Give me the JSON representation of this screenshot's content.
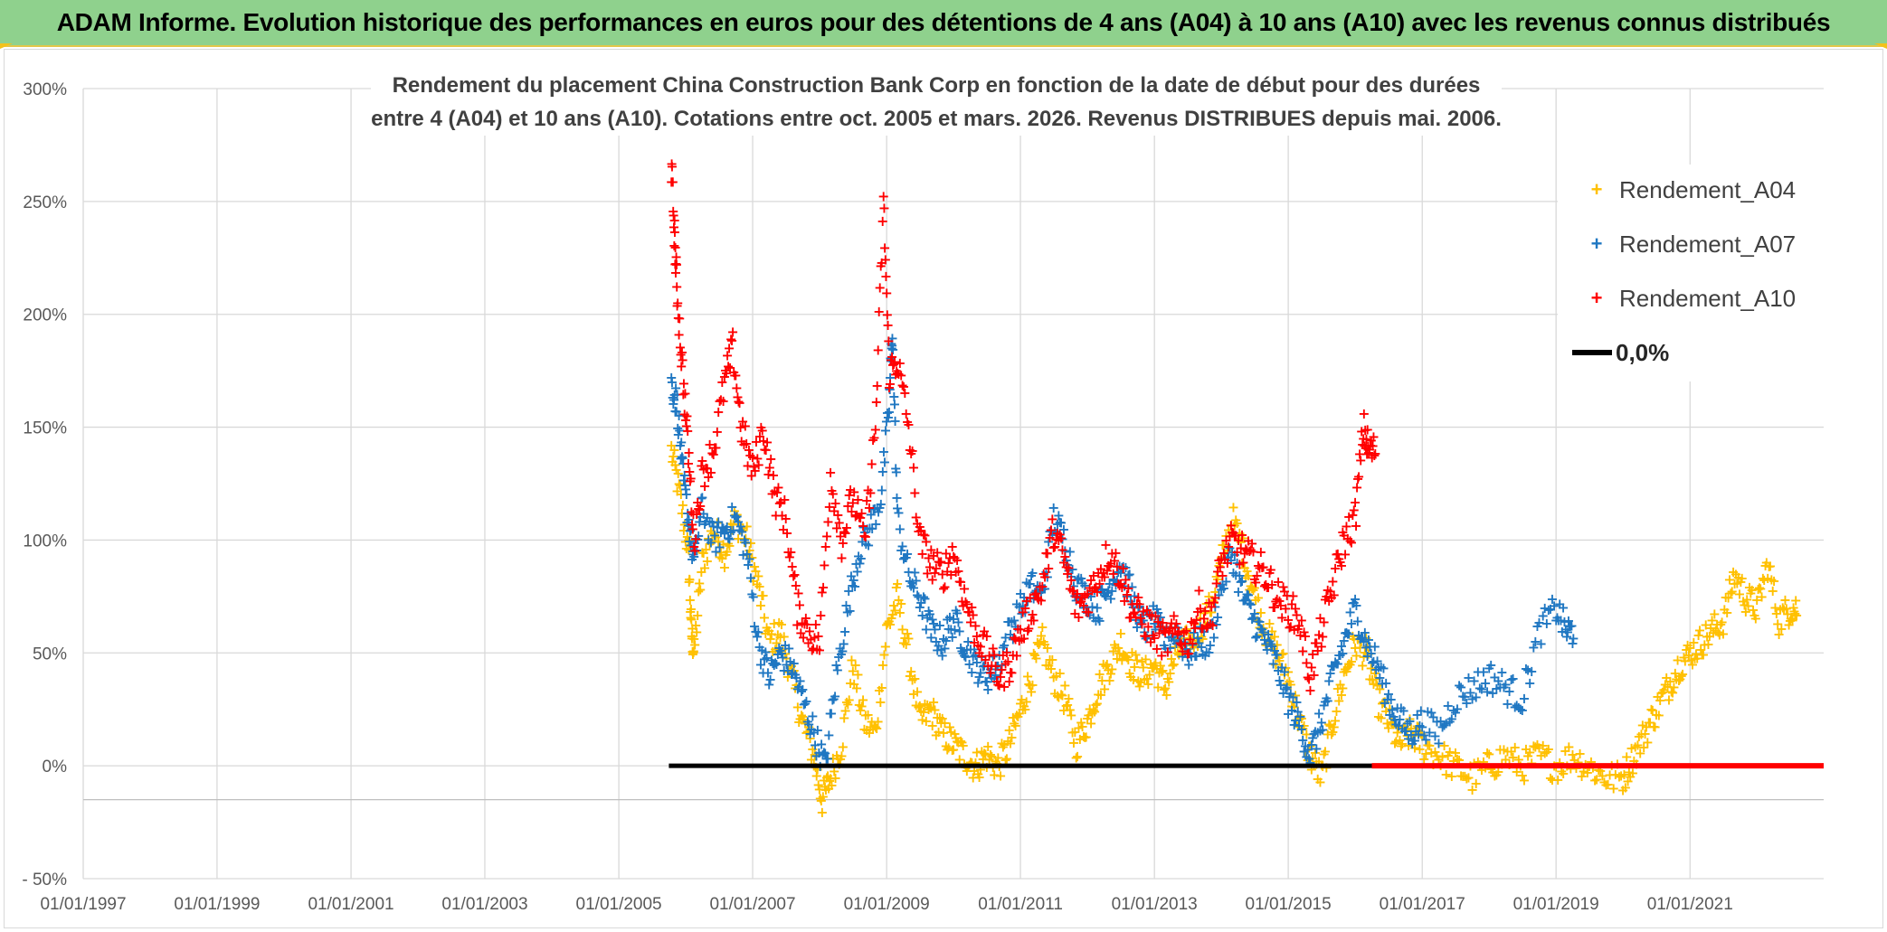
{
  "banner": {
    "title": "ADAM Informe. Evolution historique des performances en euros pour des détentions de 4 ans (A04) à 10 ans (A10) avec les revenus connus distribués"
  },
  "colors": {
    "banner_bg": "#8fd18d",
    "A04": "#ffc000",
    "A07": "#1f77c2",
    "A10": "#ff0000",
    "zero": "#000000",
    "grid": "#d9d9d9"
  },
  "chart_data": {
    "type": "scatter",
    "title_line1": "Rendement du placement China Construction Bank Corp en fonction de la date de début pour des durées",
    "title_line2": "entre 4 (A04) et 10 ans (A10). Cotations entre oct. 2005 et mars. 2026. Revenus DISTRIBUES depuis mai. 2006.",
    "xlabel": "",
    "ylabel": "",
    "xlim": [
      "1997-01-01",
      "2022-12-31"
    ],
    "ylim": [
      -50,
      300
    ],
    "yunit": "%",
    "grid": true,
    "legend_position": "top-right",
    "x_ticks": [
      "01/01/1997",
      "01/01/1999",
      "01/01/2001",
      "01/01/2003",
      "01/01/2005",
      "01/01/2007",
      "01/01/2009",
      "01/01/2011",
      "01/01/2013",
      "01/01/2015",
      "01/01/2017",
      "01/01/2019",
      "01/01/2021"
    ],
    "y_ticks": [
      "300%",
      "250%",
      "200%",
      "150%",
      "100%",
      "50%",
      "0%",
      "- 50%"
    ],
    "y_tick_values": [
      300,
      250,
      200,
      150,
      100,
      50,
      0,
      -50
    ],
    "series": [
      {
        "name": "Rendement_A04",
        "marker": "+",
        "color": "#ffc000",
        "points": [
          [
            "2005-10-15",
            140
          ],
          [
            "2005-12-01",
            120
          ],
          [
            "2006-01-15",
            95
          ],
          [
            "2006-02-01",
            60
          ],
          [
            "2006-02-15",
            50
          ],
          [
            "2006-04-01",
            90
          ],
          [
            "2006-06-01",
            105
          ],
          [
            "2006-08-01",
            95
          ],
          [
            "2006-10-01",
            110
          ],
          [
            "2006-12-01",
            100
          ],
          [
            "2007-02-01",
            80
          ],
          [
            "2007-04-01",
            55
          ],
          [
            "2007-06-01",
            60
          ],
          [
            "2007-08-01",
            40
          ],
          [
            "2007-10-01",
            20
          ],
          [
            "2007-12-01",
            5
          ],
          [
            "2008-01-15",
            -15
          ],
          [
            "2008-03-01",
            -5
          ],
          [
            "2008-05-01",
            10
          ],
          [
            "2008-07-01",
            45
          ],
          [
            "2008-09-01",
            20
          ],
          [
            "2008-11-01",
            15
          ],
          [
            "2009-01-01",
            60
          ],
          [
            "2009-03-01",
            75
          ],
          [
            "2009-05-01",
            50
          ],
          [
            "2009-07-01",
            20
          ],
          [
            "2009-09-01",
            25
          ],
          [
            "2009-11-01",
            15
          ],
          [
            "2010-01-01",
            10
          ],
          [
            "2010-03-01",
            5
          ],
          [
            "2010-05-01",
            0
          ],
          [
            "2010-07-01",
            5
          ],
          [
            "2010-09-01",
            0
          ],
          [
            "2010-11-01",
            10
          ],
          [
            "2011-01-01",
            25
          ],
          [
            "2011-03-01",
            40
          ],
          [
            "2011-05-01",
            55
          ],
          [
            "2011-07-01",
            40
          ],
          [
            "2011-09-01",
            30
          ],
          [
            "2011-11-01",
            10
          ],
          [
            "2012-01-01",
            20
          ],
          [
            "2012-03-01",
            35
          ],
          [
            "2012-05-01",
            45
          ],
          [
            "2012-07-01",
            55
          ],
          [
            "2012-09-01",
            45
          ],
          [
            "2012-11-01",
            40
          ],
          [
            "2013-01-01",
            45
          ],
          [
            "2013-03-01",
            35
          ],
          [
            "2013-05-01",
            50
          ],
          [
            "2013-07-01",
            55
          ],
          [
            "2013-09-01",
            60
          ],
          [
            "2013-11-01",
            70
          ],
          [
            "2014-01-01",
            90
          ],
          [
            "2014-03-01",
            110
          ],
          [
            "2014-05-01",
            95
          ],
          [
            "2014-07-01",
            75
          ],
          [
            "2014-09-01",
            60
          ],
          [
            "2014-11-01",
            50
          ],
          [
            "2015-01-01",
            40
          ],
          [
            "2015-03-01",
            20
          ],
          [
            "2015-05-01",
            5
          ],
          [
            "2015-07-01",
            -5
          ],
          [
            "2015-09-01",
            20
          ],
          [
            "2015-11-01",
            40
          ],
          [
            "2016-01-01",
            55
          ],
          [
            "2016-03-01",
            50
          ],
          [
            "2016-05-01",
            30
          ],
          [
            "2016-07-01",
            20
          ],
          [
            "2016-09-01",
            10
          ],
          [
            "2016-11-01",
            15
          ],
          [
            "2017-01-01",
            10
          ],
          [
            "2017-04-01",
            5
          ],
          [
            "2017-07-01",
            0
          ],
          [
            "2017-10-01",
            -5
          ],
          [
            "2018-01-01",
            0
          ],
          [
            "2018-04-01",
            5
          ],
          [
            "2018-07-01",
            0
          ],
          [
            "2018-10-01",
            5
          ],
          [
            "2019-01-01",
            0
          ],
          [
            "2019-04-01",
            5
          ],
          [
            "2019-07-01",
            0
          ],
          [
            "2019-10-01",
            -5
          ],
          [
            "2020-01-01",
            -5
          ],
          [
            "2020-03-01",
            5
          ],
          [
            "2020-05-01",
            15
          ],
          [
            "2020-07-01",
            25
          ],
          [
            "2020-09-01",
            35
          ],
          [
            "2020-11-01",
            45
          ],
          [
            "2021-01-01",
            50
          ],
          [
            "2021-03-01",
            55
          ],
          [
            "2021-05-01",
            60
          ],
          [
            "2021-07-01",
            65
          ],
          [
            "2021-09-01",
            85
          ],
          [
            "2021-11-01",
            75
          ],
          [
            "2022-01-01",
            70
          ],
          [
            "2022-03-01",
            90
          ],
          [
            "2022-05-01",
            65
          ],
          [
            "2022-07-01",
            70
          ]
        ]
      },
      {
        "name": "Rendement_A07",
        "marker": "+",
        "color": "#1f77c2",
        "points": [
          [
            "2005-10-15",
            170
          ],
          [
            "2005-11-15",
            160
          ],
          [
            "2005-12-15",
            130
          ],
          [
            "2006-01-15",
            110
          ],
          [
            "2006-02-15",
            90
          ],
          [
            "2006-04-01",
            115
          ],
          [
            "2006-06-01",
            100
          ],
          [
            "2006-08-01",
            105
          ],
          [
            "2006-10-01",
            110
          ],
          [
            "2006-12-01",
            95
          ],
          [
            "2007-02-01",
            55
          ],
          [
            "2007-04-01",
            40
          ],
          [
            "2007-06-01",
            50
          ],
          [
            "2007-08-01",
            45
          ],
          [
            "2007-10-01",
            30
          ],
          [
            "2007-12-01",
            15
          ],
          [
            "2008-02-01",
            0
          ],
          [
            "2008-04-01",
            40
          ],
          [
            "2008-06-01",
            70
          ],
          [
            "2008-08-01",
            95
          ],
          [
            "2008-10-01",
            105
          ],
          [
            "2008-12-01",
            120
          ],
          [
            "2009-01-15",
            160
          ],
          [
            "2009-02-01",
            195
          ],
          [
            "2009-03-01",
            110
          ],
          [
            "2009-05-01",
            85
          ],
          [
            "2009-07-01",
            75
          ],
          [
            "2009-09-01",
            60
          ],
          [
            "2009-11-01",
            55
          ],
          [
            "2010-01-01",
            65
          ],
          [
            "2010-03-01",
            55
          ],
          [
            "2010-05-01",
            45
          ],
          [
            "2010-07-01",
            40
          ],
          [
            "2010-09-01",
            45
          ],
          [
            "2010-11-01",
            60
          ],
          [
            "2011-01-01",
            70
          ],
          [
            "2011-03-01",
            80
          ],
          [
            "2011-05-01",
            75
          ],
          [
            "2011-07-01",
            110
          ],
          [
            "2011-09-01",
            100
          ],
          [
            "2011-11-01",
            80
          ],
          [
            "2012-01-01",
            75
          ],
          [
            "2012-03-01",
            70
          ],
          [
            "2012-05-01",
            80
          ],
          [
            "2012-07-01",
            90
          ],
          [
            "2012-09-01",
            75
          ],
          [
            "2012-11-01",
            60
          ],
          [
            "2013-01-01",
            65
          ],
          [
            "2013-03-01",
            55
          ],
          [
            "2013-05-01",
            60
          ],
          [
            "2013-07-01",
            50
          ],
          [
            "2013-09-01",
            55
          ],
          [
            "2013-11-01",
            55
          ],
          [
            "2014-01-01",
            80
          ],
          [
            "2014-03-01",
            95
          ],
          [
            "2014-05-01",
            75
          ],
          [
            "2014-07-01",
            65
          ],
          [
            "2014-09-01",
            55
          ],
          [
            "2014-11-01",
            45
          ],
          [
            "2015-01-01",
            30
          ],
          [
            "2015-03-01",
            20
          ],
          [
            "2015-05-01",
            5
          ],
          [
            "2015-07-01",
            20
          ],
          [
            "2015-09-01",
            40
          ],
          [
            "2015-11-01",
            55
          ],
          [
            "2016-01-01",
            70
          ],
          [
            "2016-03-01",
            55
          ],
          [
            "2016-05-01",
            45
          ],
          [
            "2016-07-01",
            30
          ],
          [
            "2016-09-01",
            20
          ],
          [
            "2016-11-01",
            15
          ],
          [
            "2017-01-01",
            20
          ],
          [
            "2017-04-01",
            15
          ],
          [
            "2017-07-01",
            30
          ],
          [
            "2017-10-01",
            35
          ],
          [
            "2018-01-01",
            40
          ],
          [
            "2018-04-01",
            35
          ],
          [
            "2018-07-01",
            30
          ],
          [
            "2018-10-01",
            60
          ],
          [
            "2019-01-01",
            70
          ],
          [
            "2019-03-01",
            60
          ]
        ]
      },
      {
        "name": "Rendement_A10",
        "marker": "+",
        "color": "#ff0000",
        "points": [
          [
            "2005-10-15",
            265
          ],
          [
            "2005-11-01",
            235
          ],
          [
            "2005-11-15",
            210
          ],
          [
            "2005-12-15",
            175
          ],
          [
            "2006-01-15",
            140
          ],
          [
            "2006-02-15",
            100
          ],
          [
            "2006-04-01",
            130
          ],
          [
            "2006-06-01",
            140
          ],
          [
            "2006-08-01",
            170
          ],
          [
            "2006-09-15",
            185
          ],
          [
            "2006-11-01",
            150
          ],
          [
            "2007-01-01",
            130
          ],
          [
            "2007-03-01",
            150
          ],
          [
            "2007-05-01",
            120
          ],
          [
            "2007-07-01",
            110
          ],
          [
            "2007-09-01",
            70
          ],
          [
            "2007-11-01",
            60
          ],
          [
            "2008-01-01",
            55
          ],
          [
            "2008-03-01",
            130
          ],
          [
            "2008-05-01",
            100
          ],
          [
            "2008-07-01",
            120
          ],
          [
            "2008-09-01",
            100
          ],
          [
            "2008-11-01",
            150
          ],
          [
            "2008-12-15",
            250
          ],
          [
            "2009-01-15",
            175
          ],
          [
            "2009-03-01",
            180
          ],
          [
            "2009-05-01",
            150
          ],
          [
            "2009-07-01",
            100
          ],
          [
            "2009-09-01",
            90
          ],
          [
            "2009-11-01",
            85
          ],
          [
            "2010-01-01",
            95
          ],
          [
            "2010-03-01",
            75
          ],
          [
            "2010-05-01",
            60
          ],
          [
            "2010-07-01",
            50
          ],
          [
            "2010-09-01",
            40
          ],
          [
            "2010-11-01",
            45
          ],
          [
            "2011-01-01",
            60
          ],
          [
            "2011-03-01",
            70
          ],
          [
            "2011-05-01",
            80
          ],
          [
            "2011-07-01",
            105
          ],
          [
            "2011-09-01",
            90
          ],
          [
            "2011-11-01",
            70
          ],
          [
            "2012-01-01",
            75
          ],
          [
            "2012-03-01",
            85
          ],
          [
            "2012-05-01",
            95
          ],
          [
            "2012-07-01",
            85
          ],
          [
            "2012-09-01",
            70
          ],
          [
            "2012-11-01",
            65
          ],
          [
            "2013-01-01",
            60
          ],
          [
            "2013-03-01",
            55
          ],
          [
            "2013-05-01",
            60
          ],
          [
            "2013-07-01",
            55
          ],
          [
            "2013-09-01",
            70
          ],
          [
            "2013-11-01",
            65
          ],
          [
            "2014-01-01",
            90
          ],
          [
            "2014-03-01",
            100
          ],
          [
            "2014-05-01",
            95
          ],
          [
            "2014-07-01",
            90
          ],
          [
            "2014-09-01",
            85
          ],
          [
            "2014-11-01",
            75
          ],
          [
            "2015-01-01",
            70
          ],
          [
            "2015-03-01",
            65
          ],
          [
            "2015-05-01",
            40
          ],
          [
            "2015-07-01",
            60
          ],
          [
            "2015-09-01",
            80
          ],
          [
            "2015-11-01",
            100
          ],
          [
            "2016-01-01",
            110
          ],
          [
            "2016-02-15",
            150
          ],
          [
            "2016-03-15",
            140
          ]
        ],
        "zero_segment": [
          "2016-04-01",
          "2022-12-31"
        ]
      },
      {
        "name": "0,0%",
        "marker": "line",
        "color": "#000000",
        "value": 0,
        "from": "2005-10-01",
        "to": "2016-04-01"
      }
    ]
  }
}
